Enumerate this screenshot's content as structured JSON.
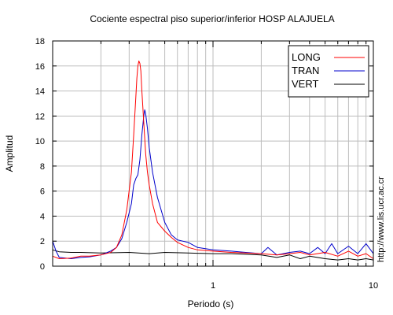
{
  "chart_data": {
    "type": "line",
    "title": "Cociente espectral piso superior/inferior  HOSP ALAJUELA",
    "xlabel": "Periodo (s)",
    "ylabel": "Amplitud",
    "x_scale": "log",
    "xlim": [
      0.1,
      10
    ],
    "ylim": [
      0,
      18
    ],
    "x_ticks": [
      1,
      10
    ],
    "x_tick_labels": [
      "1",
      "10"
    ],
    "y_ticks": [
      0,
      2,
      4,
      6,
      8,
      10,
      12,
      14,
      16,
      18
    ],
    "y_tick_labels": [
      "0",
      "2",
      "4",
      "6",
      "8",
      "10",
      "12",
      "14",
      "16",
      "18"
    ],
    "grid": true,
    "legend_position": "top-right",
    "series": [
      {
        "name": "LONG",
        "color": "#ff0000",
        "points": [
          [
            0.1,
            0.8
          ],
          [
            0.11,
            0.6
          ],
          [
            0.13,
            0.65
          ],
          [
            0.15,
            0.8
          ],
          [
            0.17,
            0.8
          ],
          [
            0.2,
            0.9
          ],
          [
            0.23,
            1.1
          ],
          [
            0.25,
            1.5
          ],
          [
            0.27,
            2.5
          ],
          [
            0.29,
            4.5
          ],
          [
            0.31,
            7.5
          ],
          [
            0.32,
            10.5
          ],
          [
            0.33,
            13.5
          ],
          [
            0.335,
            15.0
          ],
          [
            0.34,
            16.0
          ],
          [
            0.345,
            16.4
          ],
          [
            0.35,
            16.2
          ],
          [
            0.355,
            15.6
          ],
          [
            0.36,
            14.0
          ],
          [
            0.37,
            11.5
          ],
          [
            0.38,
            9.0
          ],
          [
            0.39,
            7.5
          ],
          [
            0.4,
            6.5
          ],
          [
            0.42,
            5.0
          ],
          [
            0.45,
            3.5
          ],
          [
            0.5,
            2.8
          ],
          [
            0.55,
            2.3
          ],
          [
            0.6,
            1.9
          ],
          [
            0.7,
            1.5
          ],
          [
            0.8,
            1.3
          ],
          [
            1.0,
            1.2
          ],
          [
            1.3,
            1.1
          ],
          [
            1.6,
            1.05
          ],
          [
            2.0,
            1.0
          ],
          [
            2.5,
            0.9
          ],
          [
            3.0,
            1.0
          ],
          [
            3.5,
            1.1
          ],
          [
            4.0,
            0.9
          ],
          [
            5.0,
            1.1
          ],
          [
            6.0,
            0.8
          ],
          [
            7.0,
            1.2
          ],
          [
            8.0,
            0.8
          ],
          [
            9.0,
            1.0
          ],
          [
            10.0,
            0.6
          ]
        ]
      },
      {
        "name": "TRAN",
        "color": "#0000cc",
        "points": [
          [
            0.1,
            2.0
          ],
          [
            0.105,
            1.2
          ],
          [
            0.11,
            0.7
          ],
          [
            0.13,
            0.6
          ],
          [
            0.15,
            0.7
          ],
          [
            0.17,
            0.75
          ],
          [
            0.2,
            0.9
          ],
          [
            0.23,
            1.2
          ],
          [
            0.25,
            1.5
          ],
          [
            0.27,
            2.2
          ],
          [
            0.29,
            3.5
          ],
          [
            0.31,
            5.0
          ],
          [
            0.32,
            6.5
          ],
          [
            0.33,
            7.0
          ],
          [
            0.34,
            7.3
          ],
          [
            0.35,
            8.5
          ],
          [
            0.36,
            10.5
          ],
          [
            0.37,
            12.0
          ],
          [
            0.375,
            12.5
          ],
          [
            0.38,
            12.2
          ],
          [
            0.39,
            11.0
          ],
          [
            0.4,
            9.5
          ],
          [
            0.42,
            7.5
          ],
          [
            0.45,
            5.5
          ],
          [
            0.5,
            3.5
          ],
          [
            0.55,
            2.5
          ],
          [
            0.6,
            2.1
          ],
          [
            0.7,
            1.9
          ],
          [
            0.8,
            1.5
          ],
          [
            1.0,
            1.3
          ],
          [
            1.3,
            1.2
          ],
          [
            1.6,
            1.1
          ],
          [
            2.0,
            1.0
          ],
          [
            2.2,
            1.5
          ],
          [
            2.5,
            0.9
          ],
          [
            3.0,
            1.1
          ],
          [
            3.5,
            1.2
          ],
          [
            4.0,
            1.0
          ],
          [
            4.5,
            1.5
          ],
          [
            5.0,
            1.0
          ],
          [
            5.5,
            1.8
          ],
          [
            6.0,
            1.0
          ],
          [
            7.0,
            1.6
          ],
          [
            8.0,
            1.0
          ],
          [
            9.0,
            1.8
          ],
          [
            10.0,
            1.0
          ]
        ]
      },
      {
        "name": "VERT",
        "color": "#000000",
        "points": [
          [
            0.1,
            1.3
          ],
          [
            0.11,
            1.15
          ],
          [
            0.13,
            1.1
          ],
          [
            0.15,
            1.1
          ],
          [
            0.2,
            1.05
          ],
          [
            0.3,
            1.1
          ],
          [
            0.4,
            1.0
          ],
          [
            0.5,
            1.1
          ],
          [
            0.7,
            1.05
          ],
          [
            1.0,
            1.0
          ],
          [
            1.3,
            1.0
          ],
          [
            1.6,
            0.95
          ],
          [
            2.0,
            0.9
          ],
          [
            2.5,
            0.7
          ],
          [
            3.0,
            0.9
          ],
          [
            3.5,
            0.6
          ],
          [
            4.0,
            0.8
          ],
          [
            5.0,
            0.6
          ],
          [
            6.0,
            0.5
          ],
          [
            7.0,
            0.6
          ],
          [
            8.0,
            0.5
          ],
          [
            9.0,
            0.6
          ],
          [
            10.0,
            0.5
          ]
        ]
      }
    ]
  },
  "side_note": "http://www.lis.ucr.ac.cr"
}
